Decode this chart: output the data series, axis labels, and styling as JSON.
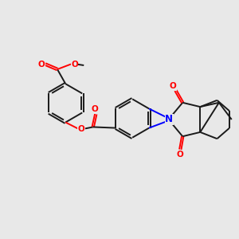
{
  "background_color": "#e8e8e8",
  "bond_color": "#1a1a1a",
  "oxygen_color": "#ff0000",
  "nitrogen_color": "#0000ff",
  "figsize": [
    3.0,
    3.0
  ],
  "dpi": 100,
  "xlim": [
    0,
    10
  ],
  "ylim": [
    0,
    10
  ]
}
